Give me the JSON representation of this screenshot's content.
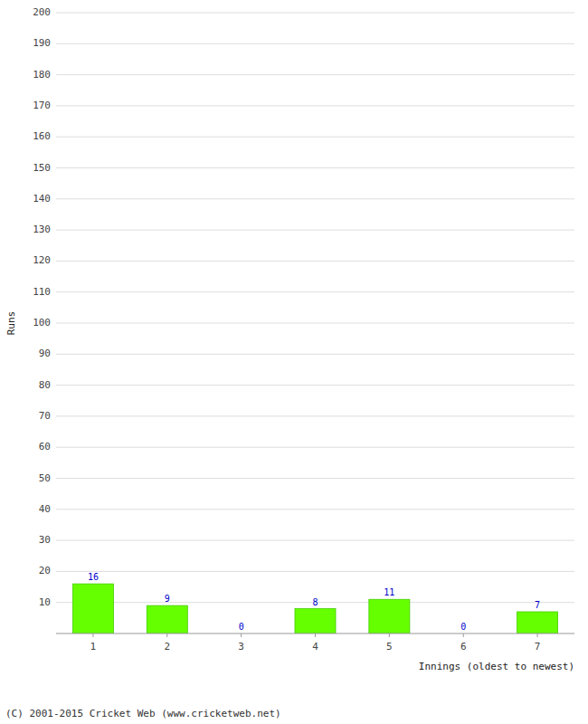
{
  "chart_data": {
    "type": "bar",
    "categories": [
      "1",
      "2",
      "3",
      "4",
      "5",
      "6",
      "7"
    ],
    "values": [
      16,
      9,
      0,
      8,
      11,
      0,
      7
    ],
    "color": "#66ff00",
    "ylabel": "Runs",
    "xlabel": "Innings (oldest to newest)",
    "ylim": [
      0,
      200
    ],
    "yticks": [
      10,
      20,
      30,
      40,
      50,
      60,
      70,
      80,
      90,
      100,
      110,
      120,
      130,
      140,
      150,
      160,
      170,
      180,
      190,
      200
    ],
    "grid": true,
    "data_labels": true,
    "annotations": [
      "(C) 2001-2015 Cricket Web (www.cricketweb.net)"
    ]
  }
}
